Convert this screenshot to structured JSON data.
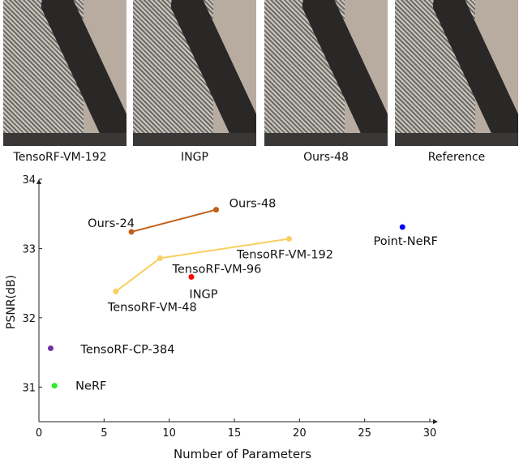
{
  "panels": [
    {
      "caption": "TensoRF-VM-192"
    },
    {
      "caption": "INGP"
    },
    {
      "caption": "Ours-48"
    },
    {
      "caption": "Reference"
    }
  ],
  "chart_data": {
    "type": "scatter",
    "title": "",
    "xlabel": "Number of Parameters",
    "ylabel": "PSNR(dB)",
    "xlim": [
      0,
      30
    ],
    "ylim": [
      30.5,
      34
    ],
    "xticks": [
      0,
      5,
      10,
      15,
      20,
      25,
      30
    ],
    "yticks": [
      31,
      32,
      33,
      34
    ],
    "grid": false,
    "lines": [
      {
        "name": "Ours",
        "color": "#c0601a",
        "points": [
          {
            "label": "Ours-24",
            "x": 7.1,
            "y": 33.24
          },
          {
            "label": "Ours-48",
            "x": 13.6,
            "y": 33.56
          }
        ]
      },
      {
        "name": "TensoRF-VM",
        "color": "#f8d060",
        "points": [
          {
            "label": "TensoRF-VM-48",
            "x": 5.9,
            "y": 32.38
          },
          {
            "label": "TensoRF-VM-96",
            "x": 9.3,
            "y": 32.86
          },
          {
            "label": "TensoRF-VM-192",
            "x": 19.2,
            "y": 33.14
          }
        ]
      }
    ],
    "points": [
      {
        "label": "INGP",
        "x": 11.7,
        "y": 32.59,
        "color": "#ff0000"
      },
      {
        "label": "Point-NeRF",
        "x": 27.9,
        "y": 33.31,
        "color": "#0000ff"
      },
      {
        "label": "TensoRF-CP-384",
        "x": 0.9,
        "y": 31.56,
        "color": "#7030a0"
      },
      {
        "label": "NeRF",
        "x": 1.2,
        "y": 31.02,
        "color": "#22ee22"
      }
    ]
  }
}
